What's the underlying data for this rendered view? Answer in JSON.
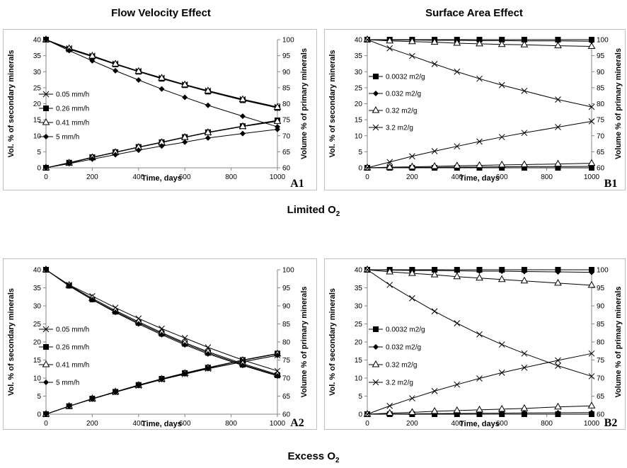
{
  "headers": {
    "left_column": "Flow Velocity Effect",
    "right_column": "Surface Area Effect",
    "middle_row": "Limited O",
    "bottom_row": "Excess O",
    "o2_subscript": "2"
  },
  "chart_data": [
    {
      "id": "A1",
      "type": "line",
      "panel_label": "A1",
      "xlabel": "Time, days",
      "ylabel": "Vol. % of secondary minerals",
      "y2label": "Volume % of primary minerals",
      "xlim": [
        0,
        1000
      ],
      "xticks": [
        0,
        200,
        400,
        600,
        800,
        1000
      ],
      "ylim": [
        0,
        40
      ],
      "yticks": [
        0,
        5,
        10,
        15,
        20,
        25,
        30,
        35,
        40
      ],
      "y2lim": [
        60,
        100
      ],
      "y2ticks": [
        60,
        65,
        70,
        75,
        80,
        85,
        90,
        95,
        100
      ],
      "legend": "center-left",
      "x": [
        0,
        100,
        200,
        300,
        400,
        500,
        600,
        700,
        850,
        1000
      ],
      "series": [
        {
          "name": "0.05 mm/h",
          "marker": "x",
          "axis": "y",
          "values": [
            0,
            1.5,
            3.2,
            4.8,
            6.4,
            7.9,
            9.5,
            11.0,
            12.9,
            14.6
          ]
        },
        {
          "name": "0.26 mm/h",
          "marker": "square",
          "axis": "y",
          "values": [
            0,
            1.6,
            3.3,
            4.9,
            6.5,
            8.0,
            9.6,
            11.1,
            13.0,
            14.8
          ]
        },
        {
          "name": "0.41 mm/h",
          "marker": "triangle",
          "axis": "y",
          "values": [
            0,
            1.5,
            3.2,
            4.8,
            6.4,
            7.9,
            9.5,
            11.0,
            12.9,
            14.5
          ]
        },
        {
          "name": "5 mm/h",
          "marker": "diamond",
          "axis": "y",
          "values": [
            0,
            1.3,
            2.7,
            4.1,
            5.5,
            6.8,
            8.0,
            9.3,
            10.7,
            12.0
          ]
        },
        {
          "name": "0.05 mm/h",
          "marker": "x",
          "axis": "y2",
          "legend": false,
          "values": [
            100,
            97.3,
            95.0,
            92.5,
            90.2,
            88.1,
            86.0,
            84.1,
            81.4,
            79.0
          ]
        },
        {
          "name": "0.26 mm/h",
          "marker": "square",
          "axis": "y2",
          "legend": false,
          "values": [
            100,
            97.0,
            94.7,
            92.3,
            90.0,
            87.8,
            85.8,
            83.8,
            81.1,
            78.7
          ]
        },
        {
          "name": "0.41 mm/h",
          "marker": "triangle",
          "axis": "y2",
          "legend": false,
          "values": [
            100,
            97.2,
            94.9,
            92.4,
            90.1,
            88.0,
            85.9,
            84.0,
            81.3,
            78.9
          ]
        },
        {
          "name": "5 mm/h",
          "marker": "diamond",
          "axis": "y2",
          "legend": false,
          "values": [
            100,
            96.6,
            93.4,
            90.3,
            87.4,
            84.6,
            82.0,
            79.5,
            76.1,
            72.8
          ]
        }
      ]
    },
    {
      "id": "B1",
      "type": "line",
      "panel_label": "B1",
      "xlabel": "Time, days",
      "ylabel": "Vol. % of secondary minerals",
      "y2label": "Volume % of primary minerals",
      "xlim": [
        0,
        1000
      ],
      "xticks": [
        0,
        200,
        400,
        600,
        800,
        1000
      ],
      "ylim": [
        0,
        40
      ],
      "yticks": [
        0,
        5,
        10,
        15,
        20,
        25,
        30,
        35,
        40
      ],
      "y2lim": [
        60,
        100
      ],
      "y2ticks": [
        60,
        65,
        70,
        75,
        80,
        85,
        90,
        95,
        100
      ],
      "legend": "center-left",
      "x": [
        0,
        100,
        200,
        300,
        400,
        500,
        600,
        700,
        850,
        1000
      ],
      "series": [
        {
          "name": "0.0032 m2/g",
          "marker": "square",
          "axis": "y",
          "values": [
            0,
            0,
            0,
            0,
            0,
            0,
            0,
            0,
            0,
            0
          ]
        },
        {
          "name": "0.032 m2/g",
          "marker": "diamond",
          "axis": "y",
          "values": [
            0,
            0.05,
            0.1,
            0.15,
            0.2,
            0.25,
            0.3,
            0.35,
            0.4,
            0.45
          ]
        },
        {
          "name": "0.32 m2/g",
          "marker": "triangle",
          "axis": "y",
          "values": [
            0,
            0.2,
            0.3,
            0.45,
            0.6,
            0.75,
            0.9,
            1.0,
            1.2,
            1.4
          ]
        },
        {
          "name": "3.2 m2/g",
          "marker": "x",
          "axis": "y",
          "values": [
            0,
            1.8,
            3.6,
            5.2,
            6.7,
            8.2,
            9.6,
            10.9,
            12.7,
            14.5
          ]
        },
        {
          "name": "0.0032 m2/g",
          "marker": "square",
          "axis": "y2",
          "legend": false,
          "values": [
            100,
            100,
            100,
            100,
            100,
            100,
            100,
            100,
            100,
            100
          ]
        },
        {
          "name": "0.032 m2/g",
          "marker": "diamond",
          "axis": "y2",
          "legend": false,
          "values": [
            100,
            99.9,
            99.9,
            99.8,
            99.8,
            99.7,
            99.7,
            99.6,
            99.6,
            99.5
          ]
        },
        {
          "name": "0.32 m2/g",
          "marker": "triangle",
          "axis": "y2",
          "legend": false,
          "values": [
            100,
            99.6,
            99.4,
            99.2,
            98.9,
            98.7,
            98.5,
            98.4,
            98.1,
            97.9
          ]
        },
        {
          "name": "3.2 m2/g",
          "marker": "x",
          "axis": "y2",
          "legend": false,
          "values": [
            100,
            97.3,
            94.9,
            92.4,
            90.0,
            87.8,
            85.8,
            84.0,
            81.3,
            79.0
          ]
        }
      ]
    },
    {
      "id": "A2",
      "type": "line",
      "panel_label": "A2",
      "xlabel": "Time, days",
      "ylabel": "Vol. % of secondary minerals",
      "y2label": "Volume % of primary minerals",
      "xlim": [
        0,
        1000
      ],
      "xticks": [
        0,
        200,
        400,
        600,
        800,
        1000
      ],
      "ylim": [
        0,
        40
      ],
      "yticks": [
        0,
        5,
        10,
        15,
        20,
        25,
        30,
        35,
        40
      ],
      "y2lim": [
        60,
        100
      ],
      "y2ticks": [
        60,
        65,
        70,
        75,
        80,
        85,
        90,
        95,
        100
      ],
      "legend": "center-left",
      "x": [
        0,
        100,
        200,
        300,
        400,
        500,
        600,
        700,
        850,
        1000
      ],
      "series": [
        {
          "name": "0.05 mm/h",
          "marker": "x",
          "axis": "y",
          "values": [
            0,
            2.2,
            4.2,
            6.1,
            7.9,
            9.6,
            11.1,
            12.6,
            14.5,
            16.3
          ]
        },
        {
          "name": "0.26 mm/h",
          "marker": "square",
          "axis": "y",
          "values": [
            0,
            2.2,
            4.3,
            6.2,
            8.1,
            9.8,
            11.4,
            12.9,
            15.0,
            16.8
          ]
        },
        {
          "name": "0.41 mm/h",
          "marker": "triangle",
          "axis": "y",
          "values": [
            0,
            2.2,
            4.3,
            6.2,
            8.0,
            9.7,
            11.3,
            12.8,
            14.9,
            16.7
          ]
        },
        {
          "name": "5 mm/h",
          "marker": "diamond",
          "axis": "y",
          "values": [
            0,
            2.2,
            4.2,
            6.1,
            7.9,
            9.6,
            11.1,
            12.6,
            14.5,
            16.3
          ]
        },
        {
          "name": "0.05 mm/h",
          "marker": "x",
          "axis": "y2",
          "legend": false,
          "values": [
            100,
            95.8,
            92.7,
            89.5,
            86.5,
            83.7,
            81.1,
            78.5,
            75.0,
            72.0
          ]
        },
        {
          "name": "0.26 mm/h",
          "marker": "square",
          "axis": "y2",
          "legend": false,
          "values": [
            100,
            95.6,
            91.8,
            88.4,
            85.3,
            82.3,
            79.5,
            77.0,
            73.7,
            70.8
          ]
        },
        {
          "name": "0.41 mm/h",
          "marker": "triangle",
          "axis": "y2",
          "legend": false,
          "values": [
            100,
            95.7,
            92.1,
            88.7,
            85.6,
            82.6,
            79.8,
            77.3,
            74.0,
            71.0
          ]
        },
        {
          "name": "5 mm/h",
          "marker": "diamond",
          "axis": "y2",
          "legend": false,
          "values": [
            100,
            95.5,
            91.7,
            88.2,
            85.0,
            82.0,
            79.2,
            76.7,
            73.5,
            70.6
          ]
        }
      ]
    },
    {
      "id": "B2",
      "type": "line",
      "panel_label": "B2",
      "xlabel": "Time, days",
      "ylabel": "Vol. % of secondary minerals",
      "y2label": "Volume % of primary minerals",
      "xlim": [
        0,
        1000
      ],
      "xticks": [
        0,
        200,
        400,
        600,
        800,
        1000
      ],
      "ylim": [
        0,
        40
      ],
      "yticks": [
        0,
        5,
        10,
        15,
        20,
        25,
        30,
        35,
        40
      ],
      "y2lim": [
        60,
        100
      ],
      "y2ticks": [
        60,
        65,
        70,
        75,
        80,
        85,
        90,
        95,
        100
      ],
      "legend": "center-left",
      "x": [
        0,
        100,
        200,
        300,
        400,
        500,
        600,
        700,
        850,
        1000
      ],
      "series": [
        {
          "name": "0.0032 m2/g",
          "marker": "square",
          "axis": "y",
          "values": [
            0,
            0,
            0,
            0,
            0,
            0,
            0,
            0,
            0,
            0
          ]
        },
        {
          "name": "0.032 m2/g",
          "marker": "diamond",
          "axis": "y",
          "values": [
            0,
            0.05,
            0.1,
            0.15,
            0.2,
            0.25,
            0.3,
            0.35,
            0.4,
            0.45
          ]
        },
        {
          "name": "0.32 m2/g",
          "marker": "triangle",
          "axis": "y",
          "values": [
            0,
            0.3,
            0.5,
            0.8,
            1.0,
            1.2,
            1.4,
            1.6,
            2.0,
            2.3
          ]
        },
        {
          "name": "3.2 m2/g",
          "marker": "x",
          "axis": "y",
          "values": [
            0,
            2.3,
            4.4,
            6.4,
            8.2,
            9.9,
            11.5,
            12.9,
            14.9,
            16.8
          ]
        },
        {
          "name": "0.0032 m2/g",
          "marker": "square",
          "axis": "y2",
          "legend": false,
          "values": [
            100,
            100,
            100,
            100,
            100,
            100,
            100,
            100,
            100,
            100
          ]
        },
        {
          "name": "0.032 m2/g",
          "marker": "diamond",
          "axis": "y2",
          "legend": false,
          "values": [
            100,
            99.9,
            99.8,
            99.8,
            99.7,
            99.6,
            99.6,
            99.5,
            99.4,
            99.3
          ]
        },
        {
          "name": "0.32 m2/g",
          "marker": "triangle",
          "axis": "y2",
          "legend": false,
          "values": [
            100,
            99.4,
            99.0,
            98.6,
            98.1,
            97.7,
            97.3,
            96.9,
            96.3,
            95.7
          ]
        },
        {
          "name": "3.2 m2/g",
          "marker": "x",
          "axis": "y2",
          "legend": false,
          "values": [
            100,
            95.8,
            92.1,
            88.5,
            85.2,
            82.1,
            79.3,
            76.8,
            73.4,
            70.5
          ]
        }
      ]
    }
  ]
}
